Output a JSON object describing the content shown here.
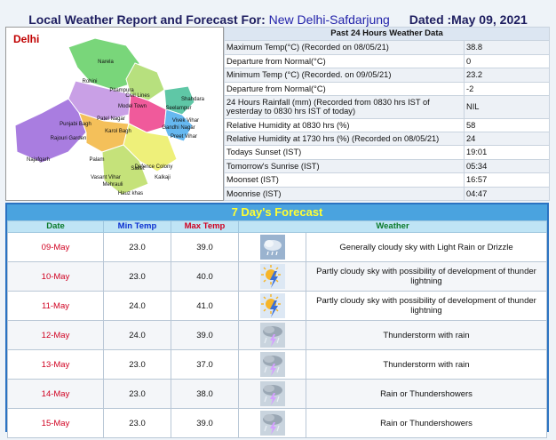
{
  "header": {
    "title_prefix": "Local Weather Report and Forecast For:",
    "location": "New Delhi-Safdarjung",
    "date_label": "Dated :May 09, 2021"
  },
  "map": {
    "title": "Delhi",
    "labels": [
      "Narela",
      "Rohini",
      "Model Town",
      "Pitampura",
      "Seelampur",
      "Shahdara",
      "Punjabi Bagh",
      "Patel Nagar",
      "Civil Lines",
      "Rajouri Garden",
      "Karol Bagh",
      "Vivek Vihar",
      "Gandhi Nagar",
      "Preet Vihar",
      "Najafgarh",
      "Palam",
      "Vasant Vihar",
      "Defence Colony",
      "Kalkaji",
      "Hauz khas",
      "Mehrauli",
      "Saket"
    ]
  },
  "past24": {
    "title": "Past 24 Hours Weather Data",
    "rows": [
      {
        "label": "Maximum Temp(°C) (Recorded on 08/05/21)",
        "value": "38.8"
      },
      {
        "label": "Departure from Normal(°C)",
        "value": "0"
      },
      {
        "label": "Minimum Temp (°C) (Recorded. on 09/05/21)",
        "value": "23.2"
      },
      {
        "label": "Departure from Normal(°C)",
        "value": "-2"
      },
      {
        "label": "24 Hours Rainfall (mm) (Recorded from 0830 hrs IST of yesterday to 0830 hrs IST of today)",
        "value": "NIL"
      },
      {
        "label": "Relative Humidity at 0830 hrs (%)",
        "value": "58"
      },
      {
        "label": "Relative Humidity at 1730 hrs (%) (Recorded on 08/05/21)",
        "value": "24"
      },
      {
        "label": "Todays Sunset (IST)",
        "value": "19:01"
      },
      {
        "label": "Tomorrow's Sunrise (IST)",
        "value": "05:34"
      },
      {
        "label": "Moonset (IST)",
        "value": "16:57"
      },
      {
        "label": "Moonrise (IST)",
        "value": "04:47"
      }
    ]
  },
  "forecast": {
    "title": "7 Day's Forecast",
    "headers": {
      "date": "Date",
      "min": "Min Temp",
      "max": "Max Temp",
      "weather": "Weather"
    },
    "rows": [
      {
        "date": "09-May",
        "min": "23.0",
        "max": "39.0",
        "icon": "cloud-rain-icon",
        "weather": "Generally cloudy sky with Light Rain or Drizzle"
      },
      {
        "date": "10-May",
        "min": "23.0",
        "max": "40.0",
        "icon": "sun-lightning-icon",
        "weather": "Partly cloudy sky with possibility of development of thunder lightning"
      },
      {
        "date": "11-May",
        "min": "24.0",
        "max": "41.0",
        "icon": "sun-lightning-icon",
        "weather": "Partly cloudy sky with possibility of development of thunder lightning"
      },
      {
        "date": "12-May",
        "min": "24.0",
        "max": "39.0",
        "icon": "thunderstorm-icon",
        "weather": "Thunderstorm with rain"
      },
      {
        "date": "13-May",
        "min": "23.0",
        "max": "37.0",
        "icon": "thunderstorm-icon",
        "weather": "Thunderstorm with rain"
      },
      {
        "date": "14-May",
        "min": "23.0",
        "max": "38.0",
        "icon": "thunderstorm-icon",
        "weather": "Rain or Thundershowers"
      },
      {
        "date": "15-May",
        "min": "23.0",
        "max": "39.0",
        "icon": "thunderstorm-icon",
        "weather": "Rain or Thundershowers"
      }
    ]
  }
}
